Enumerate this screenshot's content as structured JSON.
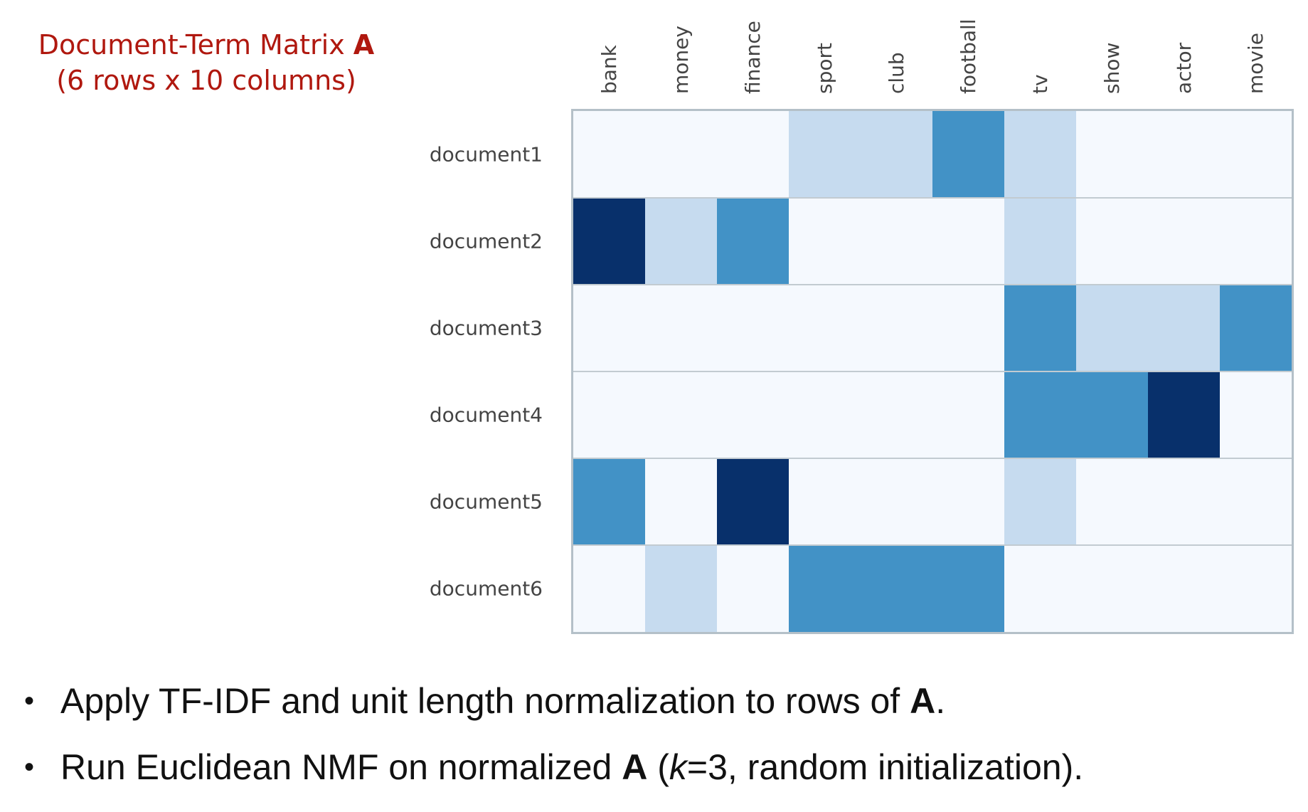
{
  "title": {
    "line1_prefix": "Document-Term Matrix ",
    "line1_bold": "A",
    "line2": "(6 rows x 10 columns)"
  },
  "chart_data": {
    "type": "heatmap",
    "rows": [
      "document1",
      "document2",
      "document3",
      "document4",
      "document5",
      "document6"
    ],
    "columns": [
      "bank",
      "money",
      "finance",
      "sport",
      "club",
      "football",
      "tv",
      "show",
      "actor",
      "movie"
    ],
    "values": [
      [
        0,
        0,
        0,
        1,
        1,
        2,
        1,
        0,
        0,
        0
      ],
      [
        3,
        1,
        2,
        0,
        0,
        0,
        1,
        0,
        0,
        0
      ],
      [
        0,
        0,
        0,
        0,
        0,
        0,
        2,
        1,
        1,
        2
      ],
      [
        0,
        0,
        0,
        0,
        0,
        0,
        2,
        2,
        3,
        0
      ],
      [
        2,
        0,
        3,
        0,
        0,
        0,
        1,
        0,
        0,
        0
      ],
      [
        0,
        1,
        0,
        2,
        2,
        2,
        0,
        0,
        0,
        0
      ]
    ],
    "colorscale": [
      "#f5f9fe",
      "#c6dbef",
      "#4292c6",
      "#08306b"
    ]
  },
  "bullets": [
    {
      "parts": [
        {
          "text": "Apply TF-IDF and unit length normalization to rows of ",
          "style": "normal"
        },
        {
          "text": "A",
          "style": "bold"
        },
        {
          "text": ".",
          "style": "normal"
        }
      ]
    },
    {
      "parts": [
        {
          "text": "Run Euclidean NMF on normalized ",
          "style": "normal"
        },
        {
          "text": "A",
          "style": "bold"
        },
        {
          "text": " (",
          "style": "normal"
        },
        {
          "text": "k",
          "style": "italic"
        },
        {
          "text": "=3, random initialization).",
          "style": "normal"
        }
      ]
    }
  ],
  "bullet_symbol": "•"
}
